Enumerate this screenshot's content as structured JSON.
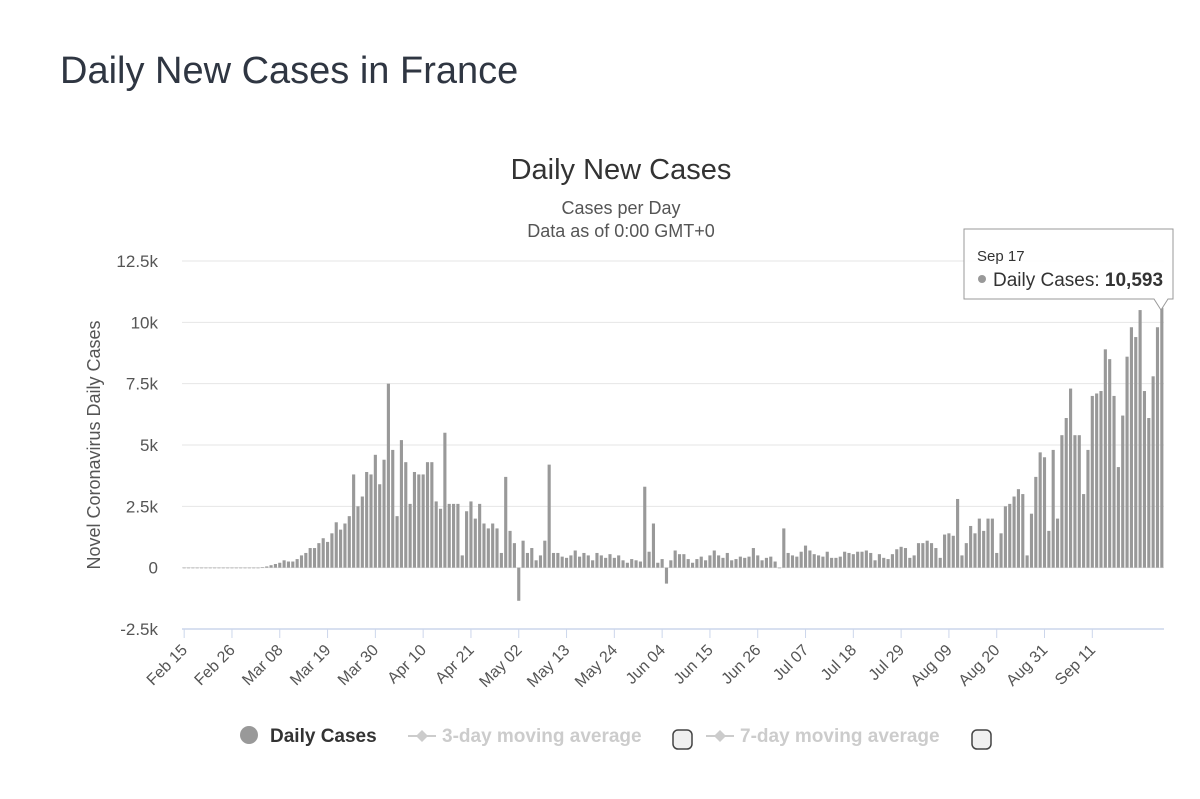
{
  "page": {
    "title": "Daily New Cases in France"
  },
  "chart_data": {
    "type": "bar",
    "title": "Daily New Cases",
    "subtitle": "Cases per Day",
    "subtitle2": "Data as of 0:00 GMT+0",
    "ylabel": "Novel Coronavirus Daily Cases",
    "xlabel": "",
    "ylim": [
      -2500,
      12500
    ],
    "yticks": [
      -2500,
      0,
      2500,
      5000,
      7500,
      10000,
      12500
    ],
    "yticklabels": [
      "-2.5k",
      "0",
      "2.5k",
      "5k",
      "7.5k",
      "10k",
      "12.5k"
    ],
    "x_start": "Feb 15",
    "x_end": "Sep 17",
    "xticklabels": [
      "Feb 15",
      "Feb 26",
      "Mar 08",
      "Mar 19",
      "Mar 30",
      "Apr 10",
      "Apr 21",
      "May 02",
      "May 13",
      "May 24",
      "Jun 04",
      "Jun 15",
      "Jun 26",
      "Jul 07",
      "Jul 18",
      "Jul 29",
      "Aug 09",
      "Aug 20",
      "Aug 31",
      "Sep 11"
    ],
    "xtick_every_days": 11,
    "grid": true,
    "series": [
      {
        "name": "Daily Cases",
        "color": "#999999",
        "values": [
          0,
          0,
          0,
          0,
          0,
          0,
          0,
          0,
          0,
          0,
          0,
          0,
          0,
          0,
          0,
          0,
          0,
          0,
          10,
          50,
          100,
          150,
          200,
          300,
          250,
          250,
          350,
          500,
          600,
          800,
          800,
          1000,
          1200,
          1050,
          1400,
          1850,
          1550,
          1800,
          2100,
          3800,
          2500,
          2900,
          3900,
          3800,
          4600,
          3400,
          4400,
          7500,
          4800,
          2100,
          5200,
          4300,
          2600,
          3900,
          3800,
          3800,
          4300,
          4300,
          2700,
          2400,
          5500,
          2600,
          2600,
          2600,
          500,
          2300,
          2700,
          2000,
          2600,
          1800,
          1600,
          1800,
          1600,
          600,
          3700,
          1500,
          1000,
          -1350,
          1100,
          600,
          800,
          300,
          500,
          1100,
          4200,
          600,
          600,
          450,
          400,
          500,
          700,
          450,
          600,
          500,
          300,
          600,
          500,
          400,
          550,
          400,
          500,
          300,
          200,
          350,
          300,
          250,
          3300,
          650,
          1800,
          200,
          350,
          -650,
          300,
          700,
          550,
          550,
          350,
          200,
          350,
          450,
          300,
          500,
          700,
          500,
          400,
          600,
          300,
          350,
          450,
          400,
          450,
          800,
          500,
          300,
          400,
          450,
          250,
          0,
          1600,
          600,
          500,
          450,
          650,
          900,
          700,
          550,
          500,
          450,
          650,
          400,
          400,
          450,
          650,
          600,
          550,
          650,
          650,
          700,
          600,
          300,
          550,
          400,
          350,
          550,
          750,
          850,
          800,
          400,
          500,
          1000,
          1000,
          1100,
          1000,
          800,
          400,
          1350,
          1400,
          1300,
          2800,
          500,
          1000,
          1700,
          1400,
          2000,
          1500,
          2000,
          2000,
          600,
          1400,
          2500,
          2600,
          2900,
          3200,
          3000,
          500,
          2200,
          3700,
          4700,
          4500,
          1500,
          4800,
          2000,
          5400,
          6100,
          7300,
          5400,
          5400,
          3000,
          4800,
          7000,
          7100,
          7200,
          8900,
          8500,
          7000,
          4100,
          6200,
          8600,
          9800,
          9400,
          10500,
          7200,
          6100,
          7800,
          9800,
          10593
        ]
      }
    ],
    "legend": {
      "position": "bottom",
      "items": [
        {
          "label": "Daily Cases",
          "active": true
        },
        {
          "label": "3-day moving average",
          "active": false
        },
        {
          "label": "7-day moving average",
          "active": false
        }
      ]
    },
    "tooltip": {
      "date": "Sep 17",
      "label": "Daily Cases: ",
      "value": "10,593"
    }
  }
}
